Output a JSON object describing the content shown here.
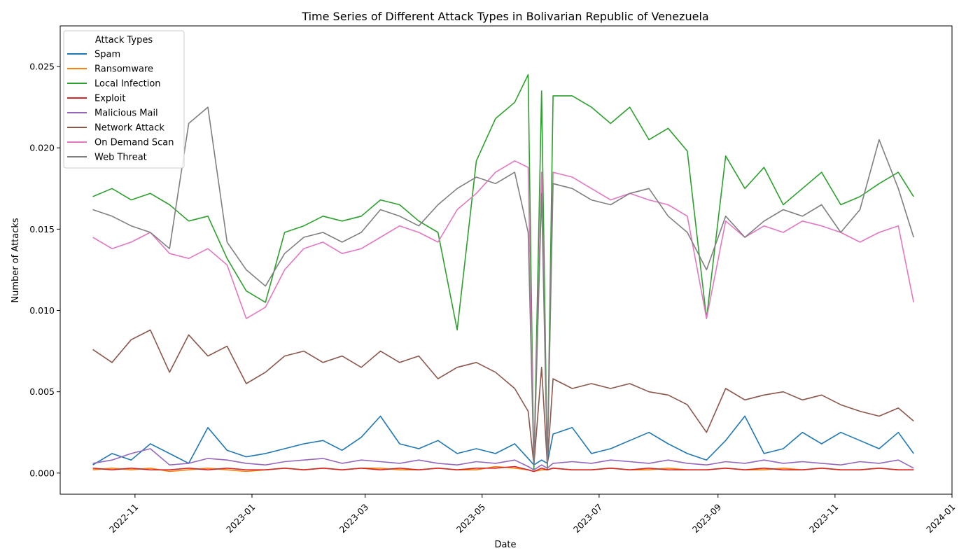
{
  "chart_data": {
    "type": "line",
    "title": "Time Series of Different Attack Types in Bolivarian Republic of Venezuela",
    "xlabel": "Date",
    "ylabel": "Number of Attacks",
    "xlim": [
      "2022-09-23",
      "2024-01-01"
    ],
    "ylim": [
      -0.0013,
      0.0275
    ],
    "x_ticks": [
      "2022-11-01",
      "2023-01-01",
      "2023-03-01",
      "2023-05-01",
      "2023-07-01",
      "2023-09-01",
      "2023-11-01",
      "2024-01-01"
    ],
    "x_tick_labels": [
      "2022-11",
      "2023-01",
      "2023-03",
      "2023-05",
      "2023-07",
      "2023-09",
      "2023-11",
      "2024-01"
    ],
    "y_ticks": [
      0.0,
      0.005,
      0.01,
      0.015,
      0.02,
      0.025
    ],
    "y_tick_labels": [
      "0.000",
      "0.005",
      "0.010",
      "0.015",
      "0.020",
      "0.025"
    ],
    "grid": false,
    "legend": {
      "title": "Attack Types",
      "placement": "top-left"
    },
    "x": [
      "2022-10-10",
      "2022-10-20",
      "2022-10-30",
      "2022-11-09",
      "2022-11-19",
      "2022-11-29",
      "2022-12-09",
      "2022-12-19",
      "2022-12-29",
      "2023-01-08",
      "2023-01-18",
      "2023-01-28",
      "2023-02-07",
      "2023-02-17",
      "2023-02-27",
      "2023-03-09",
      "2023-03-19",
      "2023-03-29",
      "2023-04-08",
      "2023-04-18",
      "2023-04-28",
      "2023-05-08",
      "2023-05-18",
      "2023-05-25",
      "2023-05-28",
      "2023-06-01",
      "2023-06-04",
      "2023-06-07",
      "2023-06-17",
      "2023-06-27",
      "2023-07-07",
      "2023-07-17",
      "2023-07-27",
      "2023-08-06",
      "2023-08-16",
      "2023-08-26",
      "2023-09-05",
      "2023-09-15",
      "2023-09-25",
      "2023-10-05",
      "2023-10-15",
      "2023-10-25",
      "2023-11-04",
      "2023-11-14",
      "2023-11-24",
      "2023-12-04",
      "2023-12-12"
    ],
    "series": [
      {
        "name": "Spam",
        "color": "#1f77b4",
        "values": [
          0.0005,
          0.0012,
          0.0008,
          0.0018,
          0.0012,
          0.0006,
          0.0028,
          0.0014,
          0.001,
          0.0012,
          0.0015,
          0.0018,
          0.002,
          0.0014,
          0.0022,
          0.0035,
          0.0018,
          0.0015,
          0.002,
          0.0012,
          0.0015,
          0.0012,
          0.0018,
          0.0009,
          0.0005,
          0.0008,
          0.0006,
          0.0024,
          0.0028,
          0.0012,
          0.0015,
          0.002,
          0.0025,
          0.0018,
          0.0012,
          0.0008,
          0.002,
          0.0035,
          0.0012,
          0.0015,
          0.0025,
          0.0018,
          0.0025,
          0.002,
          0.0015,
          0.0025,
          0.0012
        ]
      },
      {
        "name": "Ransomware",
        "color": "#ff7f0e",
        "values": [
          0.0002,
          0.0003,
          0.0002,
          0.0003,
          0.0001,
          0.0002,
          0.0003,
          0.0002,
          0.0001,
          0.0002,
          0.0003,
          0.0002,
          0.0003,
          0.0002,
          0.0003,
          0.0003,
          0.0002,
          0.0002,
          0.0003,
          0.0002,
          0.0002,
          0.0004,
          0.0003,
          0.0002,
          0.0001,
          0.0002,
          0.0002,
          0.0003,
          0.0002,
          0.0002,
          0.0003,
          0.0002,
          0.0002,
          0.0003,
          0.0002,
          0.0002,
          0.0003,
          0.0002,
          0.0002,
          0.0003,
          0.0002,
          0.0003,
          0.0002,
          0.0002,
          0.0003,
          0.0002,
          0.0002
        ]
      },
      {
        "name": "Local Infection",
        "color": "#2ca02c",
        "values": [
          0.017,
          0.0175,
          0.0168,
          0.0172,
          0.0165,
          0.0155,
          0.0158,
          0.0132,
          0.0112,
          0.0105,
          0.0148,
          0.0152,
          0.0158,
          0.0155,
          0.0158,
          0.0168,
          0.0165,
          0.0155,
          0.0148,
          0.0088,
          0.0192,
          0.0218,
          0.0228,
          0.0245,
          0.0002,
          0.0235,
          0.0002,
          0.0232,
          0.0232,
          0.0225,
          0.0215,
          0.0225,
          0.0205,
          0.0212,
          0.0198,
          0.0095,
          0.0195,
          0.0175,
          0.0188,
          0.0165,
          0.0175,
          0.0185,
          0.0165,
          0.017,
          0.0178,
          0.0185,
          0.017
        ]
      },
      {
        "name": "Exploit",
        "color": "#d62728",
        "values": [
          0.0003,
          0.0002,
          0.0003,
          0.0002,
          0.0002,
          0.0003,
          0.0002,
          0.0003,
          0.0002,
          0.0002,
          0.0003,
          0.0002,
          0.0003,
          0.0002,
          0.0003,
          0.0002,
          0.0003,
          0.0002,
          0.0003,
          0.0002,
          0.0003,
          0.0003,
          0.0004,
          0.0002,
          0.0001,
          0.0003,
          0.0002,
          0.0003,
          0.0002,
          0.0002,
          0.0003,
          0.0002,
          0.0003,
          0.0002,
          0.0002,
          0.0002,
          0.0003,
          0.0002,
          0.0003,
          0.0002,
          0.0002,
          0.0003,
          0.0002,
          0.0002,
          0.0003,
          0.0002,
          0.0002
        ]
      },
      {
        "name": "Malicious Mail",
        "color": "#9467bd",
        "values": [
          0.0006,
          0.0008,
          0.0012,
          0.0015,
          0.0005,
          0.0006,
          0.0009,
          0.0008,
          0.0006,
          0.0005,
          0.0007,
          0.0008,
          0.0009,
          0.0006,
          0.0008,
          0.0007,
          0.0006,
          0.0008,
          0.0006,
          0.0005,
          0.0007,
          0.0006,
          0.0008,
          0.0004,
          0.0002,
          0.0005,
          0.0003,
          0.0006,
          0.0007,
          0.0006,
          0.0008,
          0.0007,
          0.0006,
          0.0008,
          0.0006,
          0.0005,
          0.0007,
          0.0006,
          0.0008,
          0.0006,
          0.0007,
          0.0006,
          0.0005,
          0.0007,
          0.0006,
          0.0008,
          0.0003
        ]
      },
      {
        "name": "Network Attack",
        "color": "#8c564b",
        "values": [
          0.0076,
          0.0068,
          0.0082,
          0.0088,
          0.0062,
          0.0085,
          0.0072,
          0.0078,
          0.0055,
          0.0062,
          0.0072,
          0.0075,
          0.0068,
          0.0072,
          0.0065,
          0.0075,
          0.0068,
          0.0072,
          0.0058,
          0.0065,
          0.0068,
          0.0062,
          0.0052,
          0.0038,
          0.0005,
          0.0065,
          0.0005,
          0.0058,
          0.0052,
          0.0055,
          0.0052,
          0.0055,
          0.005,
          0.0048,
          0.0042,
          0.0025,
          0.0052,
          0.0045,
          0.0048,
          0.005,
          0.0045,
          0.0048,
          0.0042,
          0.0038,
          0.0035,
          0.004,
          0.0032
        ]
      },
      {
        "name": "On Demand Scan",
        "color": "#e377c2",
        "values": [
          0.0145,
          0.0138,
          0.0142,
          0.0148,
          0.0135,
          0.0132,
          0.0138,
          0.0128,
          0.0095,
          0.0102,
          0.0125,
          0.0138,
          0.0142,
          0.0135,
          0.0138,
          0.0145,
          0.0152,
          0.0148,
          0.0142,
          0.0162,
          0.0172,
          0.0185,
          0.0192,
          0.0188,
          0.0005,
          0.0185,
          0.0005,
          0.0185,
          0.0182,
          0.0175,
          0.0168,
          0.0172,
          0.0168,
          0.0165,
          0.0158,
          0.0095,
          0.0155,
          0.0145,
          0.0152,
          0.0148,
          0.0155,
          0.0152,
          0.0148,
          0.0142,
          0.0148,
          0.0152,
          0.0105
        ]
      },
      {
        "name": "Web Threat",
        "color": "#7f7f7f",
        "values": [
          0.0162,
          0.0158,
          0.0152,
          0.0148,
          0.0138,
          0.0215,
          0.0225,
          0.0142,
          0.0125,
          0.0115,
          0.0135,
          0.0145,
          0.0148,
          0.0142,
          0.0148,
          0.0162,
          0.0158,
          0.0152,
          0.0165,
          0.0175,
          0.0182,
          0.0178,
          0.0185,
          0.0148,
          0.0005,
          0.0172,
          0.0005,
          0.0178,
          0.0175,
          0.0168,
          0.0165,
          0.0172,
          0.0175,
          0.0158,
          0.0148,
          0.0125,
          0.0158,
          0.0145,
          0.0155,
          0.0162,
          0.0158,
          0.0165,
          0.0148,
          0.0162,
          0.0205,
          0.0175,
          0.0145
        ]
      }
    ]
  }
}
